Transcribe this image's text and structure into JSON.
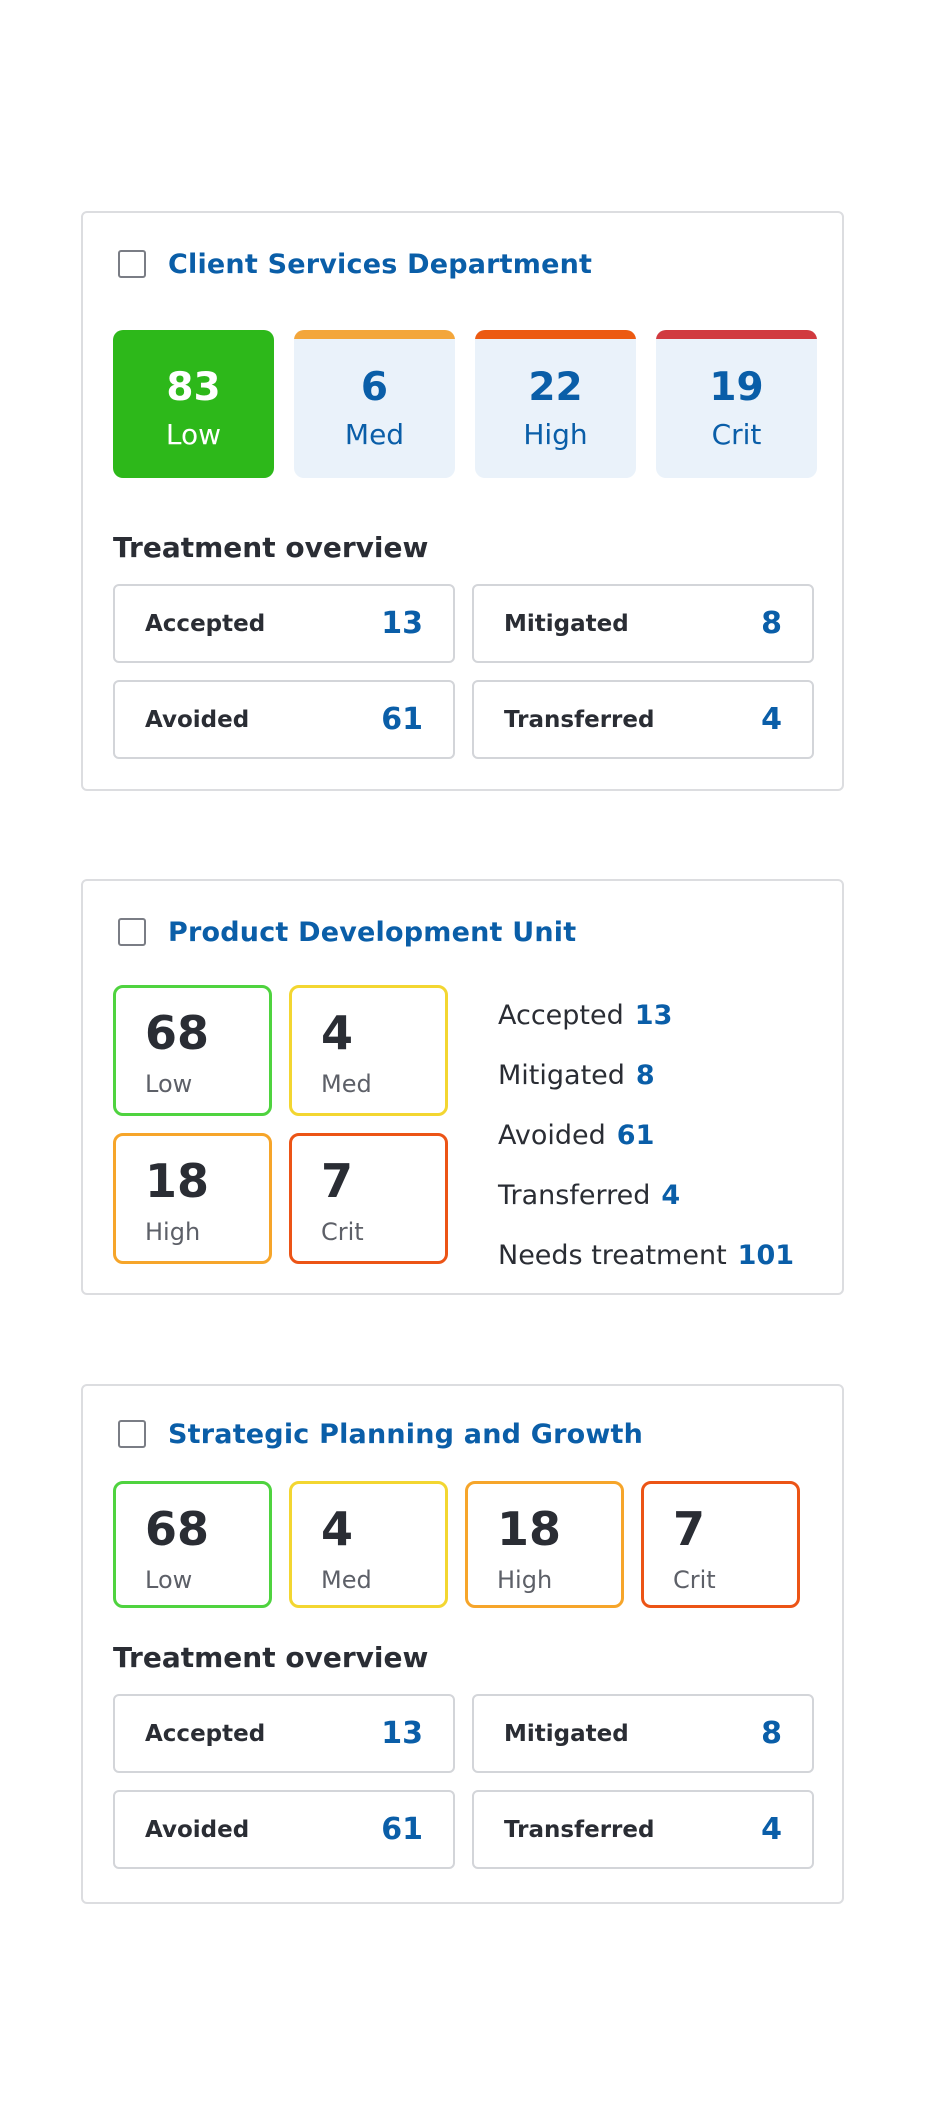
{
  "colors": {
    "title_blue": "#0a5ea8",
    "low_green": "#2db81a",
    "med_orange_bar": "#f3a63b",
    "high_orange_bar": "#ec5a12",
    "crit_red_bar": "#d13a3f",
    "outline_low": "#4fd33f",
    "outline_med": "#f3d631",
    "outline_high": "#f6a52a",
    "outline_crit": "#ec5416"
  },
  "card1": {
    "title": "Client Services Department",
    "tiles": [
      {
        "value": "83",
        "label": "Low"
      },
      {
        "value": "6",
        "label": "Med"
      },
      {
        "value": "22",
        "label": "High"
      },
      {
        "value": "19",
        "label": "Crit"
      }
    ],
    "treatment_heading": "Treatment overview",
    "treatment": [
      {
        "label": "Accepted",
        "value": "13"
      },
      {
        "label": "Mitigated",
        "value": "8"
      },
      {
        "label": "Avoided",
        "value": "61"
      },
      {
        "label": "Transferred",
        "value": "4"
      }
    ]
  },
  "card2": {
    "title": "Product Development Unit",
    "tiles": [
      {
        "value": "68",
        "label": "Low"
      },
      {
        "value": "4",
        "label": "Med"
      },
      {
        "value": "18",
        "label": "High"
      },
      {
        "value": "7",
        "label": "Crit"
      }
    ],
    "stats": [
      {
        "label": "Accepted",
        "value": "13"
      },
      {
        "label": "Mitigated",
        "value": "8"
      },
      {
        "label": "Avoided",
        "value": "61"
      },
      {
        "label": "Transferred",
        "value": "4"
      },
      {
        "label": "Needs treatment",
        "value": "101"
      }
    ]
  },
  "card3": {
    "title": "Strategic Planning and Growth",
    "tiles": [
      {
        "value": "68",
        "label": "Low"
      },
      {
        "value": "4",
        "label": "Med"
      },
      {
        "value": "18",
        "label": "High"
      },
      {
        "value": "7",
        "label": "Crit"
      }
    ],
    "treatment_heading": "Treatment overview",
    "treatment": [
      {
        "label": "Accepted",
        "value": "13"
      },
      {
        "label": "Mitigated",
        "value": "8"
      },
      {
        "label": "Avoided",
        "value": "61"
      },
      {
        "label": "Transferred",
        "value": "4"
      }
    ]
  }
}
